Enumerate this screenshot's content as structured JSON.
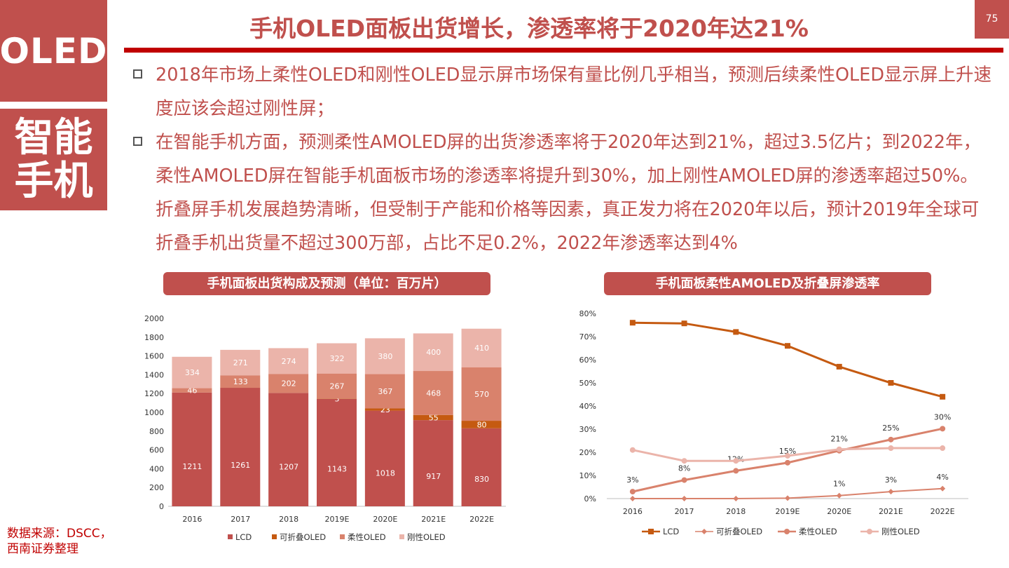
{
  "side": {
    "top_label": "OLED",
    "bottom_line1": "智能",
    "bottom_line2": "手机"
  },
  "header": {
    "title": "手机OLED面板出货增长，渗透率将于2020年达21%",
    "page_number": "75"
  },
  "bullets": [
    "2018年市场上柔性OLED和刚性OLED显示屏市场保有量比例几乎相当，预测后续柔性OLED显示屏上升速度应该会超过刚性屏；",
    "在智能手机方面，预测柔性AMOLED屏的出货渗透率将于2020年达到21%，超过3.5亿片；到2022年，柔性AMOLED屏在智能手机面板市场的渗透率将提升到30%，加上刚性AMOLED屏的渗透率超过50%。折叠屏手机发展趋势清晰，但受制于产能和价格等因素，真正发力将在2020年以后，预计2019年全球可折叠手机出货量不超过300万部，占比不足0.2%，2022年渗透率达到4%"
  ],
  "source_note": {
    "line1": "数据来源：DSCC，",
    "line2": "西南证券整理"
  },
  "colors": {
    "accent": "#c0504d",
    "rule": "#c00000",
    "lcd": "#c0504d",
    "foldable": "#c55a11",
    "flexible": "#d9826c",
    "rigid": "#ebb4aa",
    "lcd_line": "#c55a11"
  },
  "chart_data": [
    {
      "type": "bar",
      "stacked": true,
      "title": "手机面板出货构成及预测（单位：百万片）",
      "categories": [
        "2016",
        "2017",
        "2018",
        "2019E",
        "2020E",
        "2021E",
        "2022E"
      ],
      "ylim": [
        0,
        2000
      ],
      "yticks": [
        "0",
        "200",
        "400",
        "600",
        "800",
        "1000",
        "1200",
        "1400",
        "1600",
        "1800",
        "2000"
      ],
      "legend_position": "bottom",
      "series": [
        {
          "name": "LCD",
          "values": [
            1211,
            1261,
            1207,
            1143,
            1018,
            917,
            830
          ]
        },
        {
          "name": "可折叠OLED",
          "values": [
            0,
            0,
            0,
            3,
            23,
            55,
            80
          ]
        },
        {
          "name": "柔性OLED",
          "values": [
            46,
            133,
            202,
            267,
            367,
            468,
            570
          ]
        },
        {
          "name": "刚性OLED",
          "values": [
            334,
            271,
            274,
            322,
            380,
            400,
            410
          ]
        }
      ],
      "data_labels": {
        "LCD": [
          "1211",
          "1261",
          "1207",
          "1143",
          "1018",
          "917",
          "830"
        ],
        "可折叠OLED": [
          "",
          "",
          "",
          "3",
          "23",
          "55",
          "80"
        ],
        "柔性OLED": [
          "46",
          "133",
          "202",
          "267",
          "367",
          "468",
          "570"
        ],
        "刚性OLED": [
          "334",
          "271",
          "274",
          "322",
          "380",
          "400",
          "410"
        ]
      }
    },
    {
      "type": "line",
      "title": "手机面板柔性AMOLED及折叠屏渗透率",
      "categories": [
        "2016",
        "2017",
        "2018",
        "2019E",
        "2020E",
        "2021E",
        "2022E"
      ],
      "ylim": [
        0,
        0.8
      ],
      "yticks": [
        "0%",
        "10%",
        "20%",
        "30%",
        "40%",
        "50%",
        "60%",
        "70%",
        "80%"
      ],
      "legend_position": "bottom",
      "series": [
        {
          "name": "LCD",
          "values": [
            0.76,
            0.757,
            0.72,
            0.66,
            0.57,
            0.5,
            0.44
          ]
        },
        {
          "name": "可折叠OLED",
          "values": [
            0,
            0,
            0,
            0.002,
            0.013,
            0.03,
            0.043
          ]
        },
        {
          "name": "柔性OLED",
          "values": [
            0.03,
            0.08,
            0.12,
            0.155,
            0.207,
            0.255,
            0.302
          ]
        },
        {
          "name": "刚性OLED",
          "values": [
            0.21,
            0.163,
            0.163,
            0.185,
            0.213,
            0.218,
            0.218
          ]
        }
      ],
      "data_labels": {
        "柔性OLED": [
          "3%",
          "8%",
          "12%",
          "15%",
          "21%",
          "25%",
          "30%"
        ],
        "可折叠OLED": [
          "",
          "",
          "",
          "",
          "1%",
          "3%",
          "4%"
        ]
      }
    }
  ]
}
